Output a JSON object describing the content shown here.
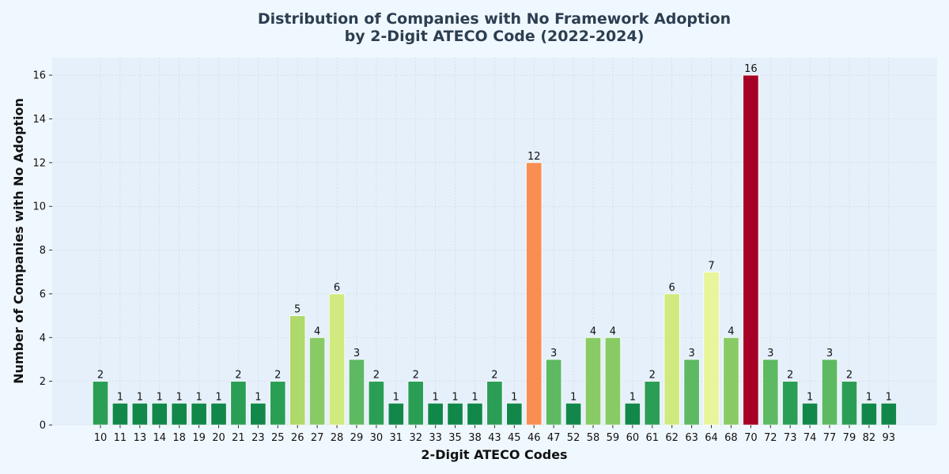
{
  "chart_data": {
    "type": "bar",
    "title_line1": "Distribution of Companies with No Framework Adoption",
    "title_line2": "by 2-Digit ATECO Code (2022-2024)",
    "xlabel": "2-Digit ATECO Codes",
    "ylabel": "Number of Companies with No Adoption",
    "ylim": [
      0,
      16.8
    ],
    "yticks": [
      0,
      2,
      4,
      6,
      8,
      10,
      12,
      14,
      16
    ],
    "grid": true,
    "categories": [
      "10",
      "11",
      "13",
      "14",
      "18",
      "19",
      "20",
      "21",
      "23",
      "25",
      "26",
      "27",
      "28",
      "29",
      "30",
      "31",
      "32",
      "33",
      "35",
      "38",
      "43",
      "45",
      "46",
      "47",
      "52",
      "58",
      "59",
      "60",
      "61",
      "62",
      "63",
      "64",
      "68",
      "70",
      "72",
      "73",
      "74",
      "77",
      "79",
      "82",
      "93"
    ],
    "values": [
      2,
      1,
      1,
      1,
      1,
      1,
      1,
      2,
      1,
      2,
      5,
      4,
      6,
      3,
      2,
      1,
      2,
      1,
      1,
      1,
      2,
      1,
      12,
      3,
      1,
      4,
      4,
      1,
      2,
      6,
      3,
      7,
      4,
      16,
      3,
      2,
      1,
      3,
      2,
      1,
      1
    ],
    "value_colors": {
      "1": "#11884a",
      "2": "#2b9e55",
      "3": "#5db962",
      "4": "#88cb65",
      "5": "#aed96b",
      "6": "#d0ea7f",
      "7": "#e8f59a",
      "12": "#f98e52",
      "16": "#a60026"
    }
  },
  "colors": {
    "background": "#f0f8ff",
    "plot_background": "#e6f0fa",
    "grid": "#c9d6e6",
    "title": "#2c3e50"
  }
}
